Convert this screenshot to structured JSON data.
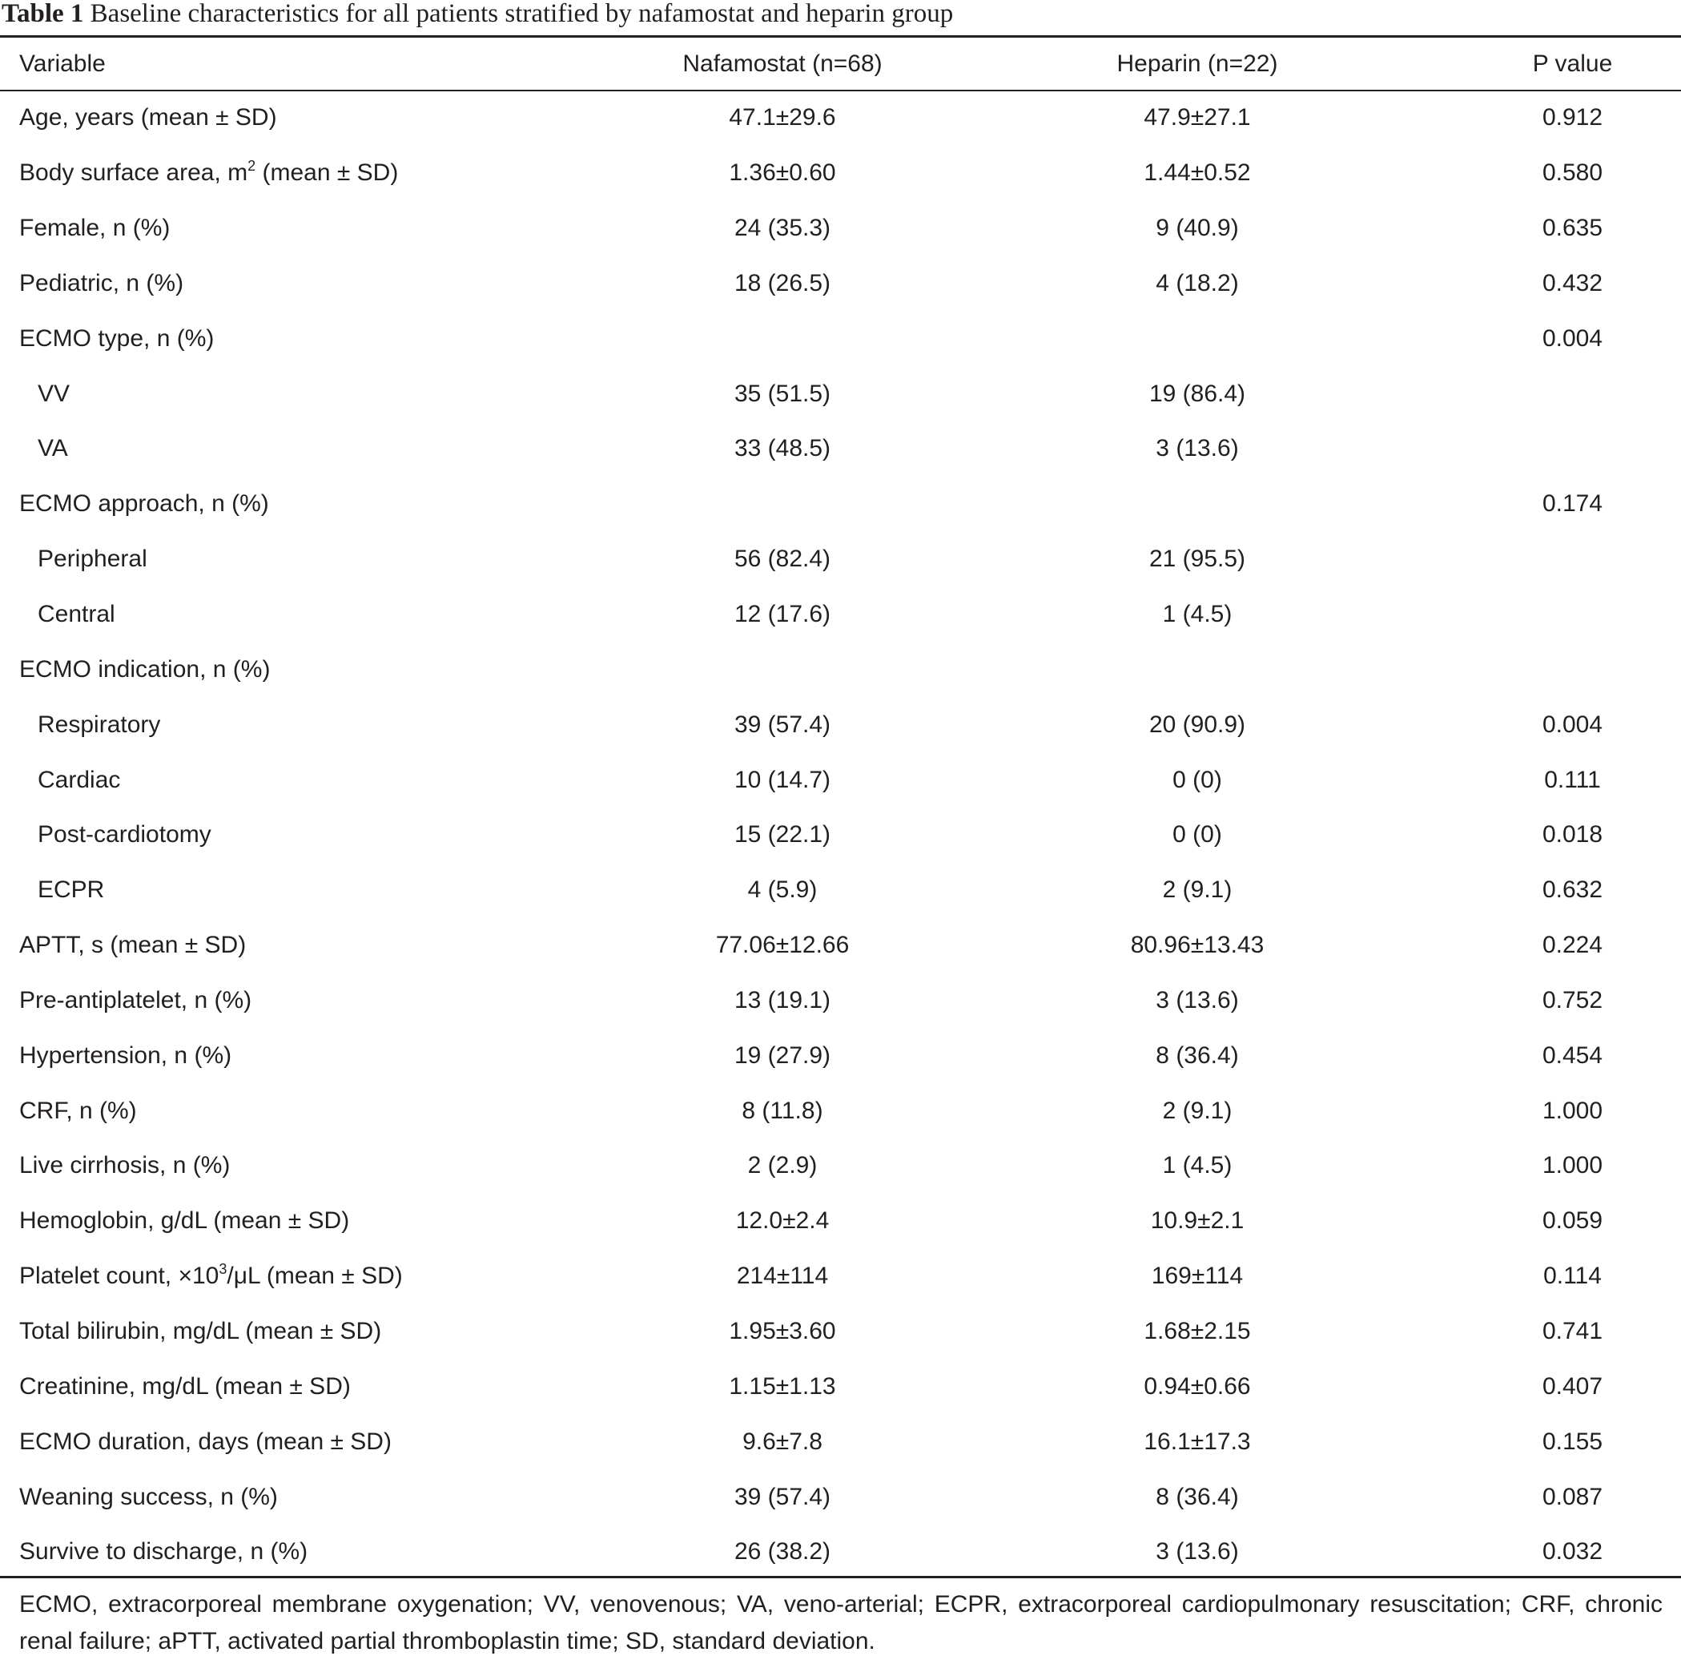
{
  "caption": {
    "label": "Table 1",
    "text": "Baseline characteristics for all patients stratified by nafamostat and heparin group"
  },
  "header": {
    "variable": "Variable",
    "nafamostat": "Nafamostat (n=68)",
    "heparin": "Heparin (n=22)",
    "p_value": "P value"
  },
  "rows": [
    {
      "variable": "Age, years (mean ± SD)",
      "nafamostat": "47.1±29.6",
      "heparin": "47.9±27.1",
      "p": "0.912"
    },
    {
      "variable_pre": "Body surface area, m",
      "variable_sup": "2",
      "variable_post": " (mean ± SD)",
      "nafamostat": "1.36±0.60",
      "heparin": "1.44±0.52",
      "p": "0.580"
    },
    {
      "variable": "Female, n (%)",
      "nafamostat": "24 (35.3)",
      "heparin": "9 (40.9)",
      "p": "0.635"
    },
    {
      "variable": "Pediatric, n (%)",
      "nafamostat": "18 (26.5)",
      "heparin": "4 (18.2)",
      "p": "0.432"
    },
    {
      "variable": "ECMO type, n (%)",
      "nafamostat": "",
      "heparin": "",
      "p": "0.004"
    },
    {
      "variable": "VV",
      "nafamostat": "35 (51.5)",
      "heparin": "19 (86.4)",
      "p": ""
    },
    {
      "variable": "VA",
      "nafamostat": "33 (48.5)",
      "heparin": "3 (13.6)",
      "p": ""
    },
    {
      "variable": "ECMO approach, n (%)",
      "nafamostat": "",
      "heparin": "",
      "p": "0.174"
    },
    {
      "variable": "Peripheral",
      "nafamostat": "56 (82.4)",
      "heparin": "21 (95.5)",
      "p": ""
    },
    {
      "variable": "Central",
      "nafamostat": "12 (17.6)",
      "heparin": "1 (4.5)",
      "p": ""
    },
    {
      "variable": "ECMO indication, n (%)",
      "nafamostat": "",
      "heparin": "",
      "p": ""
    },
    {
      "variable": "Respiratory",
      "nafamostat": "39 (57.4)",
      "heparin": "20 (90.9)",
      "p": "0.004"
    },
    {
      "variable": "Cardiac",
      "nafamostat": "10 (14.7)",
      "heparin": "0 (0)",
      "p": "0.111"
    },
    {
      "variable": "Post-cardiotomy",
      "nafamostat": "15 (22.1)",
      "heparin": "0 (0)",
      "p": "0.018"
    },
    {
      "variable": "ECPR",
      "nafamostat": "4 (5.9)",
      "heparin": "2 (9.1)",
      "p": "0.632"
    },
    {
      "variable": "APTT, s (mean ± SD)",
      "nafamostat": "77.06±12.66",
      "heparin": "80.96±13.43",
      "p": "0.224"
    },
    {
      "variable": "Pre-antiplatelet, n (%)",
      "nafamostat": "13 (19.1)",
      "heparin": "3 (13.6)",
      "p": "0.752"
    },
    {
      "variable": "Hypertension, n (%)",
      "nafamostat": "19 (27.9)",
      "heparin": "8 (36.4)",
      "p": "0.454"
    },
    {
      "variable": "CRF, n (%)",
      "nafamostat": "8 (11.8)",
      "heparin": "2 (9.1)",
      "p": "1.000"
    },
    {
      "variable": "Live cirrhosis, n (%)",
      "nafamostat": "2 (2.9)",
      "heparin": "1 (4.5)",
      "p": "1.000"
    },
    {
      "variable": "Hemoglobin, g/dL (mean ± SD)",
      "nafamostat": "12.0±2.4",
      "heparin": "10.9±2.1",
      "p": "0.059"
    },
    {
      "variable_pre": "Platelet count, ×10",
      "variable_sup": "3",
      "variable_post": "/μL (mean ± SD)",
      "nafamostat": "214±114",
      "heparin": "169±114",
      "p": "0.114"
    },
    {
      "variable": "Total bilirubin, mg/dL (mean ± SD)",
      "nafamostat": "1.95±3.60",
      "heparin": "1.68±2.15",
      "p": "0.741"
    },
    {
      "variable": "Creatinine, mg/dL (mean ± SD)",
      "nafamostat": "1.15±1.13",
      "heparin": "0.94±0.66",
      "p": "0.407"
    },
    {
      "variable": "ECMO duration, days (mean ± SD)",
      "nafamostat": "9.6±7.8",
      "heparin": "16.1±17.3",
      "p": "0.155"
    },
    {
      "variable": "Weaning success, n (%)",
      "nafamostat": "39 (57.4)",
      "heparin": "8 (36.4)",
      "p": "0.087"
    },
    {
      "variable": "Survive to discharge, n (%)",
      "nafamostat": "26 (38.2)",
      "heparin": "3 (13.6)",
      "p": "0.032"
    }
  ],
  "footnote": "ECMO, extracorporeal membrane oxygenation; VV, venovenous; VA, veno-arterial; ECPR, extracorporeal cardiopulmonary resuscitation; CRF, chronic renal failure; aPTT, activated partial thromboplastin time; SD, standard deviation."
}
